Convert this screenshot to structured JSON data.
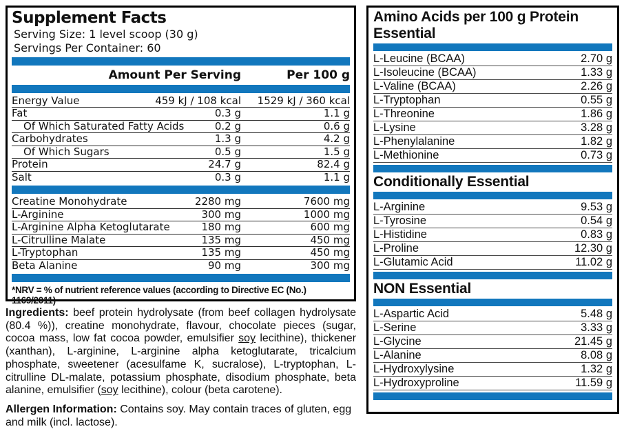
{
  "colors": {
    "accent_blue": "#1277BD",
    "panel_border": "#000000"
  },
  "left_panel": {
    "title": "Supplement Facts",
    "serving_size_label": "Serving Size:",
    "serving_size_value": "1 level scoop (30 g)",
    "servings_label": "Servings Per Container:",
    "servings_value": "60",
    "col_amount_header": "Amount Per Serving",
    "col_per100_header": "Per 100 g",
    "nutrients": [
      {
        "name": "Energy Value",
        "amount": "459 kJ / 108 kcal",
        "per100": "1529 kJ / 360 kcal",
        "indent": false
      },
      {
        "name": "Fat",
        "amount": "0.3 g",
        "per100": "1.1 g",
        "indent": false
      },
      {
        "name": "Of Which Saturated Fatty Acids",
        "amount": "0.2 g",
        "per100": "0.6 g",
        "indent": true
      },
      {
        "name": "Carbohydrates",
        "amount": "1.3 g",
        "per100": "4.2 g",
        "indent": false
      },
      {
        "name": "Of Which Sugars",
        "amount": "0.5 g",
        "per100": "1.5 g",
        "indent": true
      },
      {
        "name": "Protein",
        "amount": "24.7 g",
        "per100": "82.4 g",
        "indent": false
      },
      {
        "name": "Salt",
        "amount": "0.3 g",
        "per100": "1.1 g",
        "indent": false
      }
    ],
    "supplements": [
      {
        "name": "Creatine Monohydrate",
        "amount": "2280 mg",
        "per100": "7600 mg"
      },
      {
        "name": "L-Arginine",
        "amount": "300 mg",
        "per100": "1000 mg"
      },
      {
        "name": "L-Arginine Alpha Ketoglutarate",
        "amount": "180 mg",
        "per100": "600 mg"
      },
      {
        "name": "L-Citrulline Malate",
        "amount": "135 mg",
        "per100": "450 mg"
      },
      {
        "name": "L-Tryptophan",
        "amount": "135 mg",
        "per100": "450 mg"
      },
      {
        "name": "Beta Alanine",
        "amount": "90 mg",
        "per100": "300 mg"
      }
    ],
    "footnote": "*NRV = % of nutrient reference values (according to Directive EC (No.) 1169/2011)"
  },
  "ingredients": {
    "label": "Ingredients:",
    "segments": [
      {
        "text": " beef protein hydrolysate (from beef collagen hydrolysate (80.4 %)), creatine monohydrate, flavour, chocolate pieces (sugar, cocoa mass, low fat cocoa powder, emulsifier ",
        "underline": false
      },
      {
        "text": "soy",
        "underline": true
      },
      {
        "text": " lecithine), thickener (xanthan), L-arginine, L-arginine alpha ketoglutarate, tricalcium phosphate, sweetener (acesulfame K, sucralose), L-tryptophan, L-citrulline DL-malate, potassium phosphate, disodium phosphate, beta alanine, emulsifier (",
        "underline": false
      },
      {
        "text": "soy",
        "underline": true
      },
      {
        "text": " lecithine), colour (beta carotene).",
        "underline": false
      }
    ]
  },
  "allergen": {
    "label": "Allergen Information:",
    "text": " Contains soy. May contain traces of gluten, egg and milk (incl. lactose)."
  },
  "right_panel": {
    "title": "Amino Acids per 100 g Protein",
    "sections": [
      {
        "heading": "Essential",
        "rows": [
          {
            "name": "L-Leucine (BCAA)",
            "value": "2.70 g"
          },
          {
            "name": "L-Isoleucine (BCAA)",
            "value": "1.33 g"
          },
          {
            "name": "L-Valine (BCAA)",
            "value": "2.26 g"
          },
          {
            "name": "L-Tryptophan",
            "value": "0.55 g"
          },
          {
            "name": "L-Threonine",
            "value": "1.86 g"
          },
          {
            "name": "L-Lysine",
            "value": "3.28 g"
          },
          {
            "name": "L-Phenylalanine",
            "value": "1.82 g"
          },
          {
            "name": "L-Methionine",
            "value": "0.73 g"
          }
        ]
      },
      {
        "heading": "Conditionally Essential",
        "rows": [
          {
            "name": "L-Arginine",
            "value": "9.53 g"
          },
          {
            "name": "L-Tyrosine",
            "value": "0.54 g"
          },
          {
            "name": "L-Histidine",
            "value": "0.83 g"
          },
          {
            "name": "L-Proline",
            "value": "12.30 g"
          },
          {
            "name": "L-Glutamic Acid",
            "value": "11.02 g"
          }
        ]
      },
      {
        "heading": "NON Essential",
        "rows": [
          {
            "name": "L-Aspartic Acid",
            "value": "5.48 g"
          },
          {
            "name": "L-Serine",
            "value": "3.33 g"
          },
          {
            "name": "L-Glycine",
            "value": "21.45 g"
          },
          {
            "name": "L-Alanine",
            "value": "8.08 g"
          },
          {
            "name": "L-Hydroxylysine",
            "value": "1.32 g"
          },
          {
            "name": "L-Hydroxyproline",
            "value": "11.59 g"
          }
        ]
      }
    ]
  }
}
